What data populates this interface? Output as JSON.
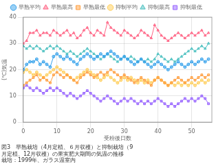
{
  "chart_data": {
    "type": "line",
    "subtitle": [
      "図3　早熟栽培（4月定植、６月収穫）と抑制栽培（9",
      "月定植、12月収穫）の果実肥大期間の気温の推移",
      "栽培：1999年、ガラス温室内"
    ],
    "xlabel": "受粉後日数",
    "ylabel": "(℃)気温",
    "xlim": [
      0,
      56
    ],
    "ylim": [
      0,
      40
    ],
    "xticks": [
      0,
      10,
      20,
      30,
      40,
      50
    ],
    "yticks": [
      0,
      10,
      20,
      30,
      40
    ],
    "grid": true,
    "legend": "top",
    "x": [
      0,
      1,
      2,
      3,
      4,
      5,
      6,
      7,
      8,
      9,
      10,
      11,
      12,
      13,
      14,
      15,
      16,
      17,
      18,
      19,
      20,
      21,
      22,
      23,
      24,
      25,
      26,
      27,
      28,
      29,
      30,
      31,
      32,
      33,
      34,
      35,
      36,
      37,
      38,
      39,
      40,
      41,
      42,
      43,
      44,
      45,
      46,
      47,
      48,
      49,
      50,
      51,
      52,
      53,
      54,
      55
    ],
    "series": [
      {
        "name": "早熟平均",
        "marker": "circle",
        "values": [
          20,
          22,
          23,
          23,
          24,
          22,
          23,
          22,
          21,
          25,
          26,
          25,
          24,
          25,
          24,
          23,
          22,
          24,
          25,
          26,
          25,
          24,
          25,
          26,
          25,
          26,
          27,
          26,
          25,
          24,
          25,
          24,
          23,
          22,
          23,
          24,
          23,
          22,
          21,
          22,
          23,
          22,
          21,
          20,
          21,
          22,
          23,
          22,
          21,
          22,
          23,
          22,
          23,
          24,
          23,
          24
        ]
      },
      {
        "name": "早熟最高",
        "marker": "triangle",
        "values": [
          30,
          31,
          34,
          34,
          35,
          33,
          34,
          34,
          33,
          35,
          34,
          33,
          34,
          35,
          33,
          34,
          32,
          33,
          35,
          36,
          34,
          33,
          35,
          34,
          33,
          38,
          36,
          35,
          34,
          33,
          35,
          34,
          33,
          32,
          33,
          35,
          34,
          33,
          32,
          37,
          35,
          33,
          32,
          31,
          32,
          33,
          34,
          33,
          32,
          33,
          34,
          33,
          34,
          35,
          33,
          34
        ]
      },
      {
        "name": "早熟最低",
        "marker": "square",
        "values": [
          14,
          15,
          16,
          17,
          18,
          16,
          17,
          16,
          15,
          18,
          19,
          18,
          17,
          18,
          17,
          16,
          15,
          17,
          18,
          19,
          18,
          17,
          18,
          19,
          18,
          19,
          20,
          19,
          18,
          17,
          18,
          17,
          16,
          15,
          16,
          17,
          16,
          15,
          14,
          16,
          17,
          16,
          15,
          14,
          15,
          16,
          17,
          16,
          15,
          16,
          17,
          16,
          17,
          18,
          17,
          18
        ]
      },
      {
        "name": "抑制平均",
        "marker": "circle",
        "values": [
          19,
          20,
          19,
          18,
          19,
          18,
          17,
          18,
          19,
          20,
          21,
          20,
          19,
          18,
          17,
          16,
          17,
          18,
          19,
          20,
          19,
          18,
          17,
          16,
          17,
          18,
          17,
          16,
          15,
          16,
          17,
          16,
          17,
          16,
          15,
          16,
          15,
          16,
          15,
          16,
          17,
          16,
          15,
          14,
          15,
          14,
          15,
          14,
          15,
          14,
          15,
          14,
          15,
          16,
          15,
          16
        ]
      },
      {
        "name": "抑制最高",
        "marker": "triangle",
        "values": [
          29,
          28,
          29,
          28,
          29,
          28,
          27,
          28,
          29,
          28,
          29,
          28,
          27,
          26,
          27,
          26,
          25,
          26,
          27,
          28,
          27,
          26,
          25,
          24,
          25,
          26,
          25,
          24,
          23,
          24,
          25,
          24,
          25,
          24,
          23,
          24,
          23,
          24,
          23,
          24,
          26,
          25,
          24,
          23,
          24,
          23,
          24,
          25,
          26,
          27,
          28,
          27,
          28,
          29,
          28,
          30
        ]
      },
      {
        "name": "抑制最低",
        "marker": "square",
        "values": [
          13,
          14,
          13,
          12,
          13,
          12,
          11,
          12,
          13,
          12,
          13,
          12,
          11,
          10,
          11,
          10,
          9,
          10,
          11,
          12,
          11,
          10,
          9,
          8,
          9,
          10,
          9,
          8,
          7,
          8,
          9,
          8,
          9,
          8,
          7,
          8,
          7,
          8,
          7,
          8,
          9,
          8,
          7,
          6,
          7,
          6,
          7,
          8,
          9,
          8,
          9,
          8,
          9,
          10,
          9,
          7
        ]
      }
    ]
  }
}
